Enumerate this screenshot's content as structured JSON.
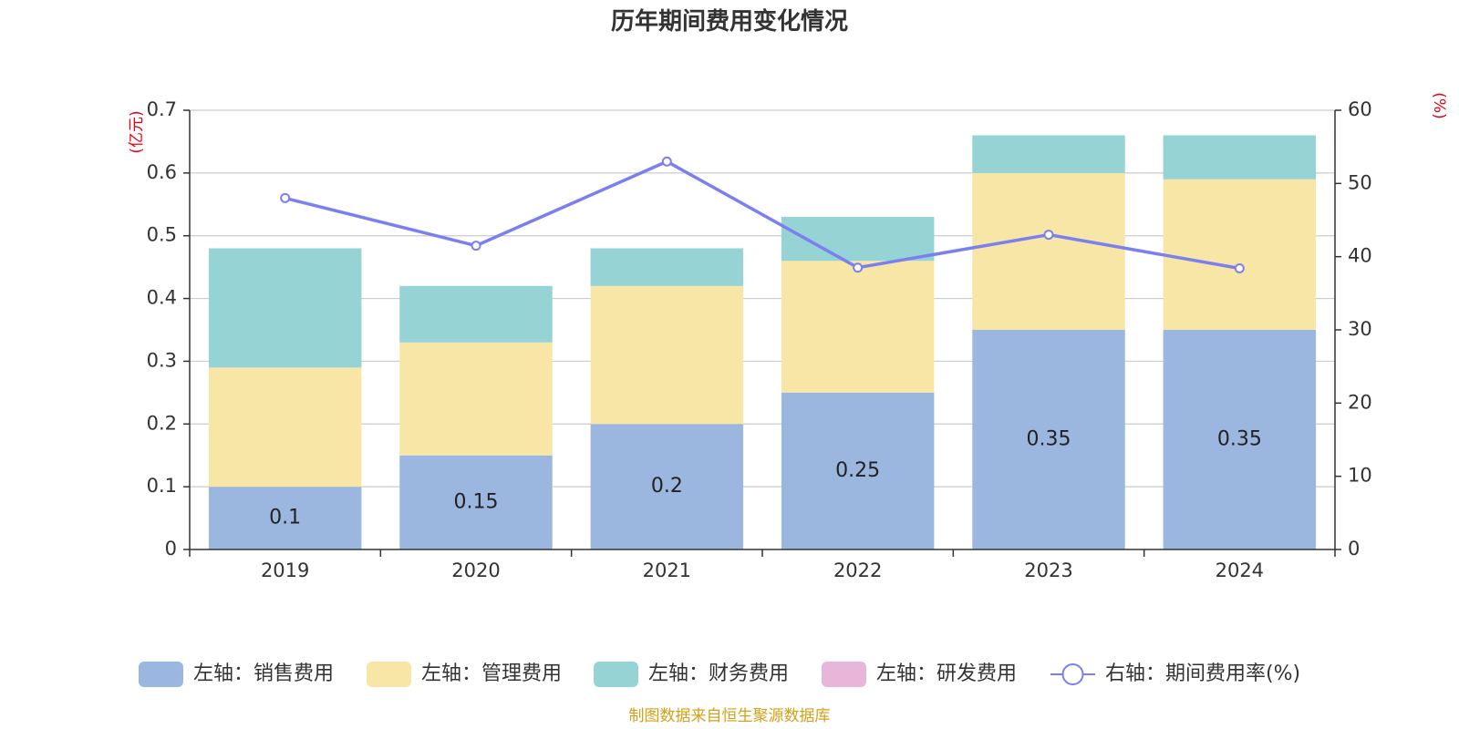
{
  "chart_data": {
    "type": "bar",
    "title": "历年期间费用变化情况",
    "categories": [
      "2019",
      "2020",
      "2021",
      "2022",
      "2023",
      "2024"
    ],
    "left_axis": {
      "unit": "(亿元)",
      "ylim": [
        0,
        0.7
      ],
      "ticks": [
        "0",
        "0.1",
        "0.2",
        "0.3",
        "0.4",
        "0.5",
        "0.6",
        "0.7"
      ]
    },
    "right_axis": {
      "unit": "(%)",
      "ylim": [
        0,
        60
      ],
      "ticks": [
        "0",
        "10",
        "20",
        "30",
        "40",
        "50",
        "60"
      ]
    },
    "series": [
      {
        "name": "左轴：销售费用",
        "axis": "left",
        "kind": "bar",
        "color": "#9bb7e0",
        "values": [
          0.1,
          0.15,
          0.2,
          0.25,
          0.35,
          0.35
        ],
        "labels": [
          "0.1",
          "0.15",
          "0.2",
          "0.25",
          "0.35",
          "0.35"
        ]
      },
      {
        "name": "左轴：管理费用",
        "axis": "left",
        "kind": "bar",
        "color": "#f7e6a6",
        "values": [
          0.19,
          0.18,
          0.22,
          0.21,
          0.25,
          0.24
        ]
      },
      {
        "name": "左轴：财务费用",
        "axis": "left",
        "kind": "bar",
        "color": "#96d3d4",
        "values": [
          0.19,
          0.09,
          0.06,
          0.07,
          0.06,
          0.07
        ]
      },
      {
        "name": "左轴：研发费用",
        "axis": "left",
        "kind": "bar",
        "color": "#e8b6d8",
        "values": [
          0,
          0,
          0,
          0,
          0,
          0
        ]
      },
      {
        "name": "右轴：期间费用率(%)",
        "axis": "right",
        "kind": "line",
        "color": "#7b7ff0",
        "values": [
          48,
          41.5,
          53,
          38.5,
          43,
          38.4
        ]
      }
    ],
    "grid": true,
    "legend": "bottom"
  },
  "source": "制图数据来自恒生聚源数据库"
}
